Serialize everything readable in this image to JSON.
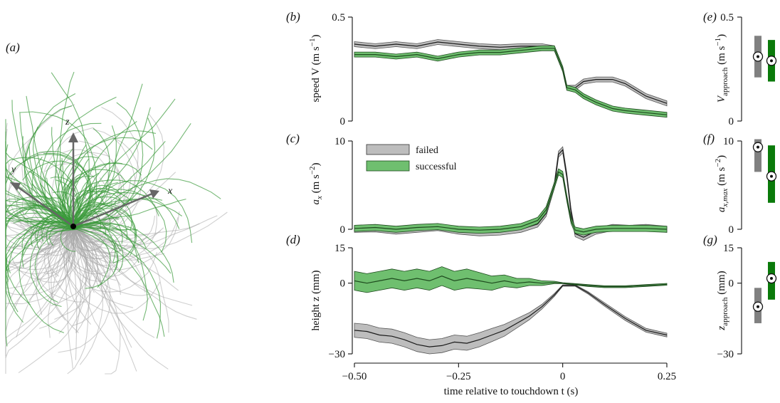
{
  "panels": {
    "a": {
      "letter": "a",
      "axis_labels": {
        "x": "x",
        "y": "y",
        "z": "z"
      }
    },
    "b": {
      "letter": "b",
      "ylabel_main": "speed V",
      "ylabel_unit": "(m s",
      "ylabel_exp": "−1",
      "ylabel_close": ")",
      "yticks": [
        "0",
        "0.5"
      ]
    },
    "c": {
      "letter": "c",
      "ylabel_main": "a",
      "ylabel_sub": "x",
      "ylabel_unit": "(m s",
      "ylabel_exp": "−2",
      "ylabel_close": ")",
      "yticks": [
        "0",
        "10"
      ]
    },
    "d": {
      "letter": "d",
      "ylabel_main": "height z (mm)",
      "yticks": [
        "−30",
        "0",
        "15"
      ]
    },
    "e": {
      "letter": "e",
      "ylabel_main": "V",
      "ylabel_sub": "approach",
      "ylabel_unit": "(m s",
      "ylabel_exp": "−1",
      "ylabel_close": ")",
      "yticks": [
        "0",
        "0.5"
      ]
    },
    "f": {
      "letter": "f",
      "ylabel_main": "a",
      "ylabel_sub": "x,max",
      "ylabel_unit": "(m s",
      "ylabel_exp": "−2",
      "ylabel_close": ")",
      "yticks": [
        "0",
        "10"
      ]
    },
    "g": {
      "letter": "g",
      "ylabel_main": "z",
      "ylabel_sub": "approach",
      "ylabel_unit": "(mm)",
      "yticks": [
        "−30",
        "0",
        "15"
      ]
    }
  },
  "xaxis": {
    "label": "time relative to touchdown t (s)",
    "ticks": [
      "−0.50",
      "−0.25",
      "0",
      "0.25"
    ]
  },
  "legend": {
    "failed": "failed",
    "successful": "successful"
  },
  "colors": {
    "failed_band": "#bdbdbd",
    "failed_mean": "#1a1a1a",
    "successful_band": "#6fbf6f",
    "successful_mean": "#1e4a1e",
    "failed_bar": "#808080",
    "successful_bar": "#0a7a0a",
    "track_green": "#3a9a3a",
    "track_gray": "#a8a8a8"
  },
  "chart_data": [
    {
      "type": "line",
      "id": "b",
      "xlim": [
        -0.5,
        0.25
      ],
      "ylim": [
        0,
        0.5
      ],
      "series": [
        {
          "name": "failed",
          "x": [
            -0.5,
            -0.45,
            -0.4,
            -0.35,
            -0.3,
            -0.25,
            -0.2,
            -0.15,
            -0.1,
            -0.05,
            -0.02,
            0,
            0.01,
            0.03,
            0.05,
            0.08,
            0.12,
            0.15,
            0.2,
            0.25
          ],
          "y": [
            0.37,
            0.36,
            0.37,
            0.36,
            0.38,
            0.37,
            0.36,
            0.355,
            0.36,
            0.36,
            0.35,
            0.25,
            0.16,
            0.16,
            0.19,
            0.2,
            0.2,
            0.18,
            0.12,
            0.085
          ],
          "band": 0.012
        },
        {
          "name": "successful",
          "x": [
            -0.5,
            -0.45,
            -0.4,
            -0.35,
            -0.3,
            -0.25,
            -0.2,
            -0.15,
            -0.1,
            -0.05,
            -0.02,
            0,
            0.01,
            0.03,
            0.05,
            0.08,
            0.12,
            0.15,
            0.2,
            0.25
          ],
          "y": [
            0.32,
            0.32,
            0.31,
            0.32,
            0.3,
            0.32,
            0.33,
            0.33,
            0.34,
            0.35,
            0.35,
            0.25,
            0.16,
            0.15,
            0.12,
            0.09,
            0.06,
            0.05,
            0.04,
            0.03
          ],
          "band": 0.012
        }
      ]
    },
    {
      "type": "line",
      "id": "c",
      "xlim": [
        -0.5,
        0.25
      ],
      "ylim": [
        0,
        10
      ],
      "series": [
        {
          "name": "failed",
          "x": [
            -0.5,
            -0.45,
            -0.4,
            -0.35,
            -0.3,
            -0.25,
            -0.2,
            -0.15,
            -0.1,
            -0.06,
            -0.04,
            -0.02,
            -0.01,
            0,
            0.01,
            0.02,
            0.03,
            0.05,
            0.08,
            0.12,
            0.16,
            0.2,
            0.25
          ],
          "y": [
            0,
            0.05,
            -0.2,
            0,
            0.2,
            -0.2,
            -0.4,
            -0.3,
            0,
            0.6,
            1.8,
            5,
            8.5,
            9,
            6,
            2,
            -0.5,
            -0.9,
            -0.2,
            0.2,
            0.1,
            0.2,
            0
          ],
          "band": 0.35
        },
        {
          "name": "successful",
          "x": [
            -0.5,
            -0.45,
            -0.4,
            -0.35,
            -0.3,
            -0.25,
            -0.2,
            -0.15,
            -0.1,
            -0.06,
            -0.04,
            -0.02,
            -0.01,
            0,
            0.01,
            0.02,
            0.03,
            0.05,
            0.08,
            0.12,
            0.16,
            0.2,
            0.25
          ],
          "y": [
            0.1,
            0.2,
            0,
            0.2,
            0.3,
            0,
            -0.1,
            0,
            0.3,
            1,
            2.2,
            5,
            6.5,
            6.2,
            3.5,
            1,
            -0.1,
            -0.3,
            0,
            0.1,
            0.1,
            0.1,
            0
          ],
          "band": 0.35
        }
      ],
      "legend": "top-left"
    },
    {
      "type": "line",
      "id": "d",
      "xlim": [
        -0.5,
        0.25
      ],
      "ylim": [
        -30,
        15
      ],
      "series": [
        {
          "name": "failed",
          "x": [
            -0.5,
            -0.47,
            -0.44,
            -0.41,
            -0.38,
            -0.35,
            -0.32,
            -0.29,
            -0.26,
            -0.23,
            -0.2,
            -0.17,
            -0.14,
            -0.11,
            -0.08,
            -0.05,
            -0.02,
            0,
            0.03,
            0.06,
            0.1,
            0.15,
            0.2,
            0.25
          ],
          "y": [
            -20,
            -20.5,
            -22,
            -22.5,
            -24,
            -26,
            -27,
            -26.5,
            -25,
            -25.5,
            -24,
            -22,
            -20,
            -17,
            -14,
            -10,
            -5,
            -1,
            -1,
            -4,
            -9,
            -15,
            -20,
            -22
          ],
          "band": [
            3,
            3,
            3,
            3,
            3,
            3,
            3,
            3,
            3,
            3,
            3,
            2.8,
            2.5,
            2,
            1.5,
            1,
            0.6,
            0.3,
            0.3,
            0.5,
            0.7,
            0.8,
            0.8,
            0.8
          ]
        },
        {
          "name": "successful",
          "x": [
            -0.5,
            -0.47,
            -0.44,
            -0.41,
            -0.38,
            -0.35,
            -0.32,
            -0.29,
            -0.26,
            -0.23,
            -0.2,
            -0.17,
            -0.14,
            -0.11,
            -0.08,
            -0.05,
            -0.02,
            0,
            0.03,
            0.06,
            0.1,
            0.15,
            0.2,
            0.25
          ],
          "y": [
            1,
            0,
            1,
            2,
            1,
            2,
            1,
            3,
            1,
            2,
            1,
            0,
            1,
            0,
            0.5,
            0,
            0.3,
            0,
            -0.5,
            -1,
            -1.5,
            -1.5,
            -1,
            -0.5
          ],
          "band": [
            4,
            4,
            4,
            4,
            4,
            4,
            4,
            4,
            4,
            4,
            3.5,
            3,
            2.5,
            2,
            1.5,
            1,
            0.5,
            0.2,
            0.3,
            0.4,
            0.4,
            0.4,
            0.4,
            0.4
          ]
        }
      ]
    },
    {
      "type": "scatter",
      "id": "e",
      "ylim": [
        0,
        0.5
      ],
      "series": [
        {
          "name": "failed",
          "y": 0.31,
          "lo": 0.21,
          "hi": 0.41
        },
        {
          "name": "successful",
          "y": 0.29,
          "lo": 0.19,
          "hi": 0.39
        }
      ]
    },
    {
      "type": "scatter",
      "id": "f",
      "ylim": [
        0,
        10
      ],
      "series": [
        {
          "name": "failed",
          "y": 9.3,
          "lo": 6.5,
          "hi": 12
        },
        {
          "name": "successful",
          "y": 6,
          "lo": 3,
          "hi": 9.5
        }
      ]
    },
    {
      "type": "scatter",
      "id": "g",
      "ylim": [
        -30,
        15
      ],
      "series": [
        {
          "name": "failed",
          "y": -10,
          "lo": -17,
          "hi": -2
        },
        {
          "name": "successful",
          "y": 2,
          "lo": -7,
          "hi": 9
        }
      ]
    }
  ]
}
